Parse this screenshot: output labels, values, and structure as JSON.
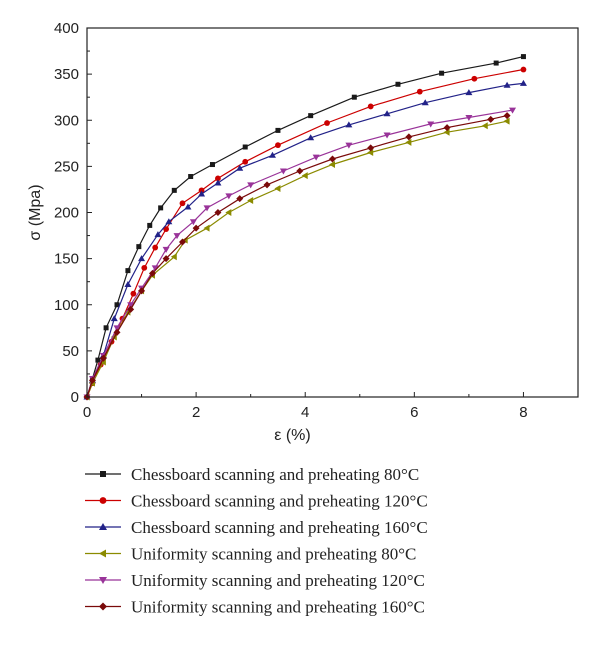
{
  "chart_data": {
    "type": "line",
    "title": "",
    "xlabel": "ε (%)",
    "ylabel": "σ (Mpa)",
    "xlim": [
      0,
      9
    ],
    "ylim": [
      0,
      400
    ],
    "xticks": [
      0,
      2,
      4,
      6,
      8
    ],
    "yticks": [
      0,
      50,
      100,
      150,
      200,
      250,
      300,
      350,
      400
    ],
    "grid": false,
    "legend_position": "below",
    "series": [
      {
        "name": "Chessboard scanning and preheating 80°C",
        "color": "#1a1a1a",
        "marker": "square",
        "points": [
          [
            0,
            0
          ],
          [
            0.1,
            20
          ],
          [
            0.2,
            40
          ],
          [
            0.35,
            75
          ],
          [
            0.55,
            100
          ],
          [
            0.75,
            137
          ],
          [
            0.95,
            163
          ],
          [
            1.15,
            186
          ],
          [
            1.35,
            205
          ],
          [
            1.6,
            224
          ],
          [
            1.9,
            239
          ],
          [
            2.3,
            252
          ],
          [
            2.9,
            271
          ],
          [
            3.5,
            289
          ],
          [
            4.1,
            305
          ],
          [
            4.9,
            325
          ],
          [
            5.7,
            339
          ],
          [
            6.5,
            351
          ],
          [
            7.5,
            362
          ],
          [
            8.0,
            369
          ]
        ]
      },
      {
        "name": "Chessboard scanning and preheating 120°C",
        "color": "#cc0000",
        "marker": "circle",
        "points": [
          [
            0,
            0
          ],
          [
            0.1,
            15
          ],
          [
            0.25,
            35
          ],
          [
            0.45,
            60
          ],
          [
            0.65,
            85
          ],
          [
            0.85,
            112
          ],
          [
            1.05,
            140
          ],
          [
            1.25,
            162
          ],
          [
            1.45,
            182
          ],
          [
            1.75,
            210
          ],
          [
            2.1,
            224
          ],
          [
            2.4,
            237
          ],
          [
            2.9,
            255
          ],
          [
            3.5,
            273
          ],
          [
            4.4,
            297
          ],
          [
            5.2,
            315
          ],
          [
            6.1,
            331
          ],
          [
            7.1,
            345
          ],
          [
            8.0,
            355
          ]
        ]
      },
      {
        "name": "Chessboard scanning and preheating 160°C",
        "color": "#222288",
        "marker": "triangle-up",
        "points": [
          [
            0,
            0
          ],
          [
            0.1,
            18
          ],
          [
            0.3,
            45
          ],
          [
            0.5,
            85
          ],
          [
            0.75,
            122
          ],
          [
            1.0,
            150
          ],
          [
            1.3,
            176
          ],
          [
            1.5,
            190
          ],
          [
            1.85,
            206
          ],
          [
            2.1,
            220
          ],
          [
            2.4,
            232
          ],
          [
            2.8,
            248
          ],
          [
            3.4,
            262
          ],
          [
            4.1,
            281
          ],
          [
            4.8,
            295
          ],
          [
            5.5,
            307
          ],
          [
            6.2,
            319
          ],
          [
            7.0,
            330
          ],
          [
            7.7,
            338
          ],
          [
            8.0,
            340
          ]
        ]
      },
      {
        "name": "Uniformity scanning and preheating 80°C",
        "color": "#8b8b00",
        "marker": "triangle-left",
        "points": [
          [
            0,
            0
          ],
          [
            0.1,
            15
          ],
          [
            0.3,
            38
          ],
          [
            0.5,
            65
          ],
          [
            0.75,
            92
          ],
          [
            1.0,
            115
          ],
          [
            1.2,
            132
          ],
          [
            1.6,
            152
          ],
          [
            1.8,
            170
          ],
          [
            2.2,
            183
          ],
          [
            2.6,
            200
          ],
          [
            3.0,
            213
          ],
          [
            3.5,
            226
          ],
          [
            4.0,
            240
          ],
          [
            4.5,
            252
          ],
          [
            5.2,
            265
          ],
          [
            5.9,
            276
          ],
          [
            6.6,
            287
          ],
          [
            7.3,
            294
          ],
          [
            7.7,
            299
          ]
        ]
      },
      {
        "name": "Uniformity scanning and preheating 120°C",
        "color": "#993399",
        "marker": "triangle-down",
        "points": [
          [
            0,
            0
          ],
          [
            0.1,
            20
          ],
          [
            0.3,
            45
          ],
          [
            0.55,
            75
          ],
          [
            0.8,
            100
          ],
          [
            1.0,
            118
          ],
          [
            1.25,
            140
          ],
          [
            1.45,
            160
          ],
          [
            1.65,
            175
          ],
          [
            1.95,
            190
          ],
          [
            2.2,
            205
          ],
          [
            2.6,
            218
          ],
          [
            3.0,
            230
          ],
          [
            3.6,
            245
          ],
          [
            4.2,
            260
          ],
          [
            4.8,
            273
          ],
          [
            5.5,
            284
          ],
          [
            6.3,
            296
          ],
          [
            7.0,
            303
          ],
          [
            7.8,
            311
          ]
        ]
      },
      {
        "name": "Uniformity scanning and preheating 160°C",
        "color": "#7a0a0a",
        "marker": "diamond",
        "points": [
          [
            0,
            0
          ],
          [
            0.1,
            18
          ],
          [
            0.3,
            42
          ],
          [
            0.55,
            70
          ],
          [
            0.8,
            95
          ],
          [
            1.0,
            115
          ],
          [
            1.2,
            134
          ],
          [
            1.45,
            150
          ],
          [
            1.75,
            168
          ],
          [
            2.0,
            183
          ],
          [
            2.4,
            200
          ],
          [
            2.8,
            215
          ],
          [
            3.3,
            230
          ],
          [
            3.9,
            245
          ],
          [
            4.5,
            258
          ],
          [
            5.2,
            270
          ],
          [
            5.9,
            282
          ],
          [
            6.6,
            292
          ],
          [
            7.4,
            301
          ],
          [
            7.7,
            305
          ]
        ]
      }
    ]
  }
}
